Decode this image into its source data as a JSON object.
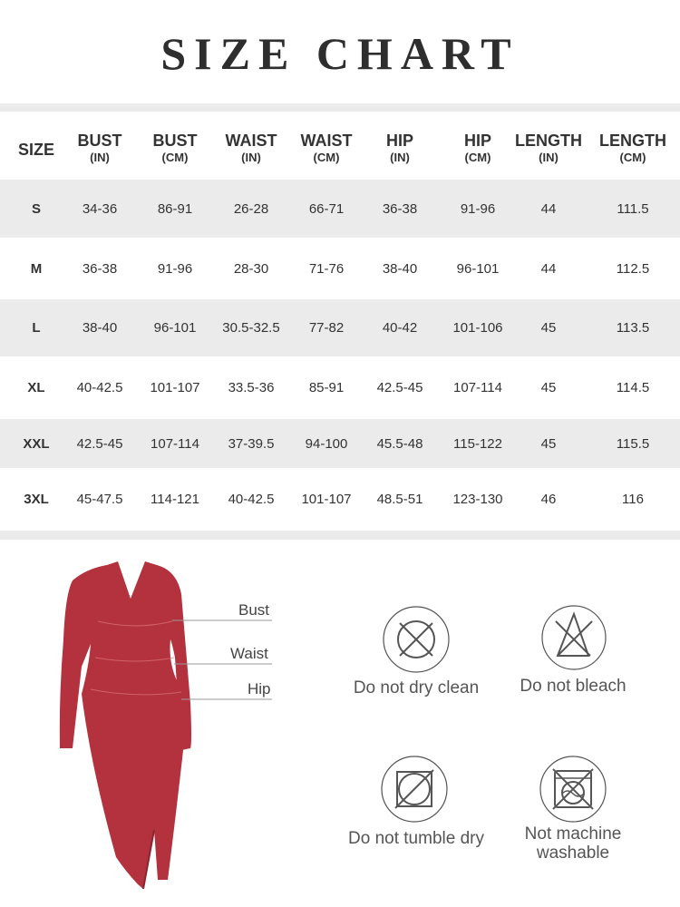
{
  "title": "SIZE CHART",
  "headers": [
    {
      "a": "SIZE",
      "b": ""
    },
    {
      "a": "BUST",
      "b": "(IN)"
    },
    {
      "a": "BUST",
      "b": "(CM)"
    },
    {
      "a": "WAIST",
      "b": "(IN)"
    },
    {
      "a": "WAIST",
      "b": "(CM)"
    },
    {
      "a": "HIP",
      "b": "(IN)"
    },
    {
      "a": "HIP",
      "b": "(CM)"
    },
    {
      "a": "LENGTH",
      "b": "(IN)"
    },
    {
      "a": "LENGTH",
      "b": "(CM)"
    }
  ],
  "rows": [
    [
      "S",
      "34-36",
      "86-91",
      "26-28",
      "66-71",
      "36-38",
      "91-96",
      "44",
      "111.5"
    ],
    [
      "M",
      "36-38",
      "91-96",
      "28-30",
      "71-76",
      "38-40",
      "96-101",
      "44",
      "112.5"
    ],
    [
      "L",
      "38-40",
      "96-101",
      "30.5-32.5",
      "77-82",
      "40-42",
      "101-106",
      "45",
      "113.5"
    ],
    [
      "XL",
      "40-42.5",
      "101-107",
      "33.5-36",
      "85-91",
      "42.5-45",
      "107-114",
      "45",
      "114.5"
    ],
    [
      "XXL",
      "42.5-45",
      "107-114",
      "37-39.5",
      "94-100",
      "45.5-48",
      "115-122",
      "45",
      "115.5"
    ],
    [
      "3XL",
      "45-47.5",
      "114-121",
      "40-42.5",
      "101-107",
      "48.5-51",
      "123-130",
      "46",
      "116"
    ]
  ],
  "measure_labels": {
    "bust": "Bust",
    "waist": "Waist",
    "hip": "Hip"
  },
  "care": [
    {
      "label": "Do not dry clean",
      "icon": "do-not-dry-clean-icon"
    },
    {
      "label": "Do not bleach",
      "icon": "do-not-bleach-icon"
    },
    {
      "label": "Do not tumble dry",
      "icon": "do-not-tumble-dry-icon"
    },
    {
      "label": "Not machine washable",
      "icon": "not-machine-washable-icon"
    }
  ],
  "colors": {
    "dress": "#b3323e",
    "band": "#ebebeb",
    "text": "#333333"
  }
}
